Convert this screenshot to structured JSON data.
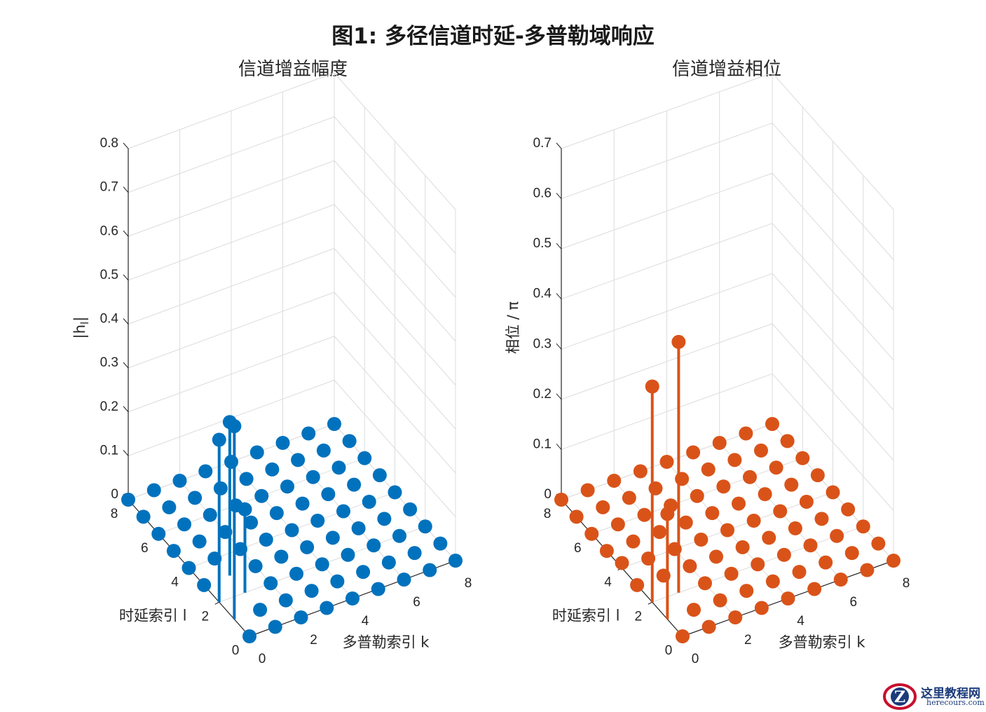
{
  "figure": {
    "title": "图1: 多径信道时延-多普勒域响应"
  },
  "chart_data": [
    {
      "type": "stem3",
      "title": "信道增益幅度",
      "xlabel": "多普勒索引 k",
      "ylabel": "时延索引 l",
      "zlabel": "|h_l|",
      "zlabel_main": "|h",
      "zlabel_sub": "l",
      "zlabel_tail": "|",
      "color": "#0072BD",
      "xlim": [
        0,
        8
      ],
      "ylim": [
        0,
        8
      ],
      "zlim": [
        0,
        0.8
      ],
      "x_ticks": [
        "0",
        "2",
        "4",
        "6",
        "8"
      ],
      "y_ticks": [
        "0",
        "2",
        "4",
        "6",
        "8"
      ],
      "z_ticks": [
        "0",
        "0.1",
        "0.2",
        "0.3",
        "0.4",
        "0.5",
        "0.6",
        "0.7",
        "0.8"
      ],
      "grid": true,
      "grid_size": 8,
      "nonzero_points": [
        {
          "k": 0,
          "l": 1,
          "value": 0.44
        },
        {
          "k": 0,
          "l": 2,
          "value": 0.37
        },
        {
          "k": 1,
          "l": 2,
          "value": 0.19
        },
        {
          "k": 1,
          "l": 3,
          "value": 0.35
        }
      ]
    },
    {
      "type": "stem3",
      "title": "信道增益相位",
      "xlabel": "多普勒索引 k",
      "ylabel": "时延索引 l",
      "zlabel": "相位  / π",
      "color": "#D95319",
      "xlim": [
        0,
        8
      ],
      "ylim": [
        0,
        8
      ],
      "zlim": [
        0,
        0.7
      ],
      "x_ticks": [
        "0",
        "2",
        "4",
        "6",
        "8"
      ],
      "y_ticks": [
        "0",
        "2",
        "4",
        "6",
        "8"
      ],
      "z_ticks": [
        "0",
        "0.1",
        "0.2",
        "0.3",
        "0.4",
        "0.5",
        "0.6",
        "0.7"
      ],
      "grid": true,
      "grid_size": 8,
      "nonzero_points": [
        {
          "k": 0,
          "l": 1,
          "value": 0.21
        },
        {
          "k": 0,
          "l": 2,
          "value": 0.43
        },
        {
          "k": 1,
          "l": 2,
          "value": 0.5
        },
        {
          "k": 0,
          "l": 4,
          "value": 0.01
        }
      ]
    }
  ],
  "watermark": {
    "name": "这里教程网",
    "url": "herecours.com"
  }
}
